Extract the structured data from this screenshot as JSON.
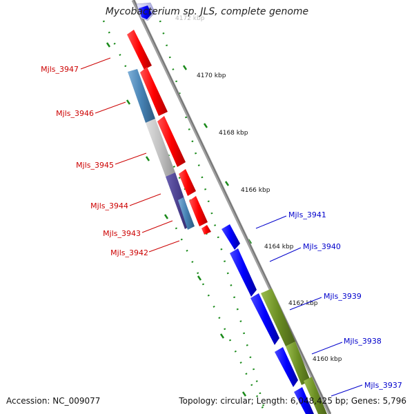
{
  "title": "Mycobacterium sp. JLS, complete genome",
  "accession": "Accession: NC_009077",
  "topology": "Topology: circular; Length: 6,048,425 bp; Genes: 5,796",
  "colors": {
    "strand_line": "#888888",
    "tick_marks": "#1a8a1a",
    "gene_red": "#ff0000",
    "gene_blue": "#0000ff",
    "gene_olive": "#6b8e23",
    "gene_steelblue": "#4682b4",
    "gene_gray": "#c0c0c0",
    "gene_darkslate": "#483d8b",
    "gene_pale": "#c8c8f0",
    "label_red": "#cc0000",
    "label_blue": "#0000cc"
  },
  "scale": {
    "unit": "kbp",
    "ticks": [
      "4172 kbp",
      "4170 kbp",
      "4168 kbp",
      "4166 kbp",
      "4164 kbp",
      "4162 kbp",
      "4160 kbp"
    ]
  },
  "genes_left": [
    "Mjls_3947",
    "Mjls_3946",
    "Mjls_3945",
    "Mjls_3944",
    "Mjls_3943",
    "Mjls_3942"
  ],
  "genes_right": [
    "Mjls_3941",
    "Mjls_3940",
    "Mjls_3939",
    "Mjls_3938",
    "Mjls_3937"
  ]
}
